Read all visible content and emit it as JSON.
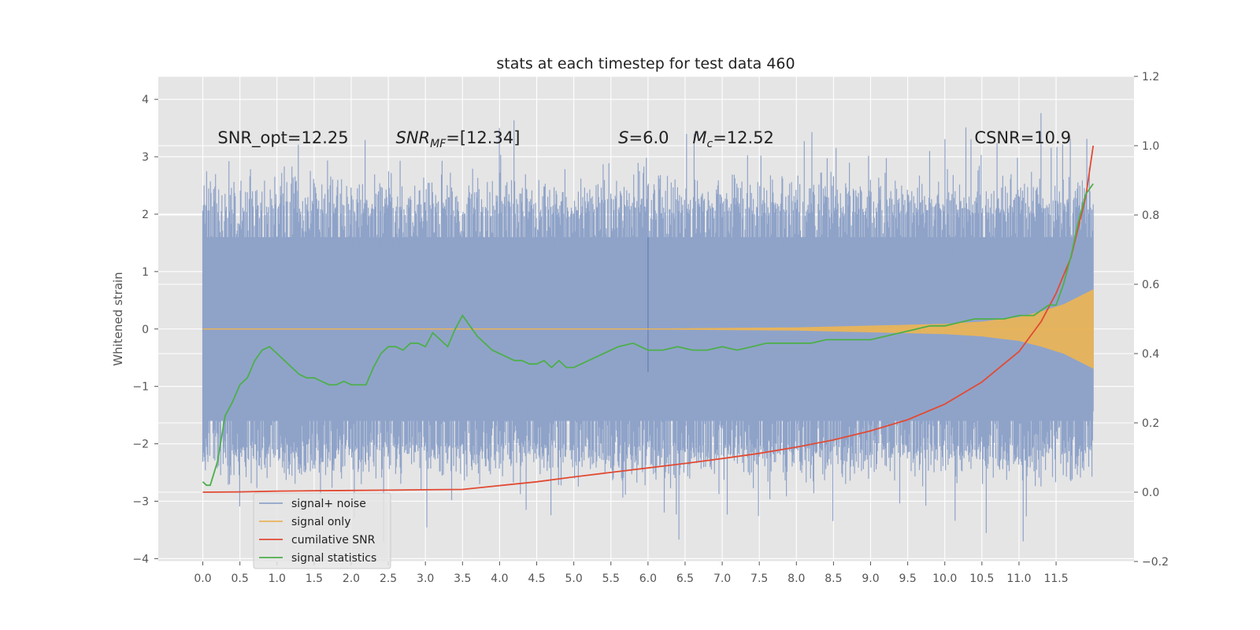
{
  "chart_data": {
    "type": "line",
    "title": "stats at each timestep for test data 460",
    "xlabel": "",
    "ylabel": "Whitened strain",
    "y2label": "",
    "xlim": [
      -0.6,
      12.55
    ],
    "ylim": [
      -4.05,
      4.4
    ],
    "y2lim": [
      -0.2,
      1.2
    ],
    "grid": true,
    "legend_position": "lower-left",
    "x_ticks": [
      "0.0",
      "0.5",
      "1.0",
      "1.5",
      "2.0",
      "2.5",
      "3.0",
      "3.5",
      "4.0",
      "4.5",
      "5.0",
      "5.5",
      "6.0",
      "6.5",
      "7.0",
      "7.5",
      "8.0",
      "8.5",
      "9.0",
      "9.5",
      "10.0",
      "10.5",
      "11.0",
      "11.5"
    ],
    "y_ticks": [
      "−4",
      "−3",
      "−2",
      "−1",
      "0",
      "1",
      "2",
      "3",
      "4"
    ],
    "y2_ticks": [
      "−0.2",
      "0.0",
      "0.2",
      "0.4",
      "0.6",
      "0.8",
      "1.0",
      "1.2"
    ],
    "annotations": [
      {
        "text": "SNR_opt=12.25",
        "x": 0.2
      },
      {
        "text": "SNR_MF=[12.34]",
        "x": 2.6
      },
      {
        "text": "S=6.0",
        "x": 5.6
      },
      {
        "text": "M_c=12.52",
        "x": 6.6
      },
      {
        "text": "CSNR=10.9",
        "x": 10.4
      }
    ],
    "annotation_y": 3.3,
    "series": [
      {
        "name": "signal+ noise",
        "axis": "left",
        "color": "#8fa3c9",
        "x_range": [
          0.0,
          12.0
        ],
        "noise_envelope": {
          "typical_min": -2.0,
          "typical_max": 2.0,
          "peak_min": -3.7,
          "peak_max": 4.1
        }
      },
      {
        "name": "signal only",
        "axis": "left",
        "color": "#e8b45a",
        "x": [
          0.0,
          6.0,
          8.0,
          9.0,
          10.0,
          10.5,
          11.0,
          11.3,
          11.6,
          11.8,
          12.0
        ],
        "envelope": [
          0.0,
          0.0,
          0.02,
          0.05,
          0.08,
          0.12,
          0.2,
          0.3,
          0.42,
          0.55,
          0.68
        ]
      },
      {
        "name": "cumilative SNR",
        "axis": "right",
        "color": "#e24a33",
        "x": [
          0.0,
          0.5,
          1.0,
          1.5,
          2.0,
          2.5,
          3.0,
          3.5,
          4.0,
          4.5,
          5.0,
          5.5,
          6.0,
          6.5,
          7.0,
          7.5,
          8.0,
          8.5,
          9.0,
          9.5,
          10.0,
          10.5,
          11.0,
          11.3,
          11.5,
          11.7,
          11.9,
          12.0
        ],
        "values": [
          0.0,
          0.001,
          0.003,
          0.004,
          0.005,
          0.006,
          0.007,
          0.008,
          0.019,
          0.03,
          0.044,
          0.057,
          0.07,
          0.083,
          0.097,
          0.112,
          0.13,
          0.151,
          0.177,
          0.209,
          0.254,
          0.318,
          0.406,
          0.493,
          0.574,
          0.677,
          0.853,
          1.0
        ]
      },
      {
        "name": "signal statistics",
        "axis": "right",
        "color": "#4daf4a",
        "x": [
          0.0,
          0.05,
          0.1,
          0.2,
          0.3,
          0.4,
          0.5,
          0.6,
          0.7,
          0.8,
          0.9,
          1.0,
          1.1,
          1.2,
          1.3,
          1.4,
          1.5,
          1.6,
          1.7,
          1.8,
          1.9,
          2.0,
          2.1,
          2.2,
          2.3,
          2.4,
          2.5,
          2.6,
          2.7,
          2.8,
          2.9,
          3.0,
          3.1,
          3.2,
          3.3,
          3.4,
          3.5,
          3.6,
          3.7,
          3.8,
          3.9,
          4.0,
          4.1,
          4.2,
          4.3,
          4.4,
          4.5,
          4.6,
          4.7,
          4.8,
          4.9,
          5.0,
          5.2,
          5.4,
          5.6,
          5.8,
          6.0,
          6.2,
          6.4,
          6.6,
          6.8,
          7.0,
          7.2,
          7.4,
          7.6,
          7.8,
          8.0,
          8.2,
          8.4,
          8.6,
          8.8,
          9.0,
          9.2,
          9.4,
          9.6,
          9.8,
          10.0,
          10.2,
          10.4,
          10.6,
          10.8,
          11.0,
          11.2,
          11.4,
          11.5,
          11.6,
          11.7,
          11.8,
          11.9,
          12.0
        ],
        "values": [
          0.03,
          0.02,
          0.02,
          0.09,
          0.22,
          0.26,
          0.31,
          0.33,
          0.38,
          0.41,
          0.42,
          0.4,
          0.38,
          0.36,
          0.34,
          0.33,
          0.33,
          0.32,
          0.31,
          0.31,
          0.32,
          0.31,
          0.31,
          0.31,
          0.36,
          0.4,
          0.42,
          0.42,
          0.41,
          0.43,
          0.43,
          0.42,
          0.46,
          0.44,
          0.42,
          0.47,
          0.51,
          0.48,
          0.45,
          0.43,
          0.41,
          0.4,
          0.39,
          0.38,
          0.38,
          0.37,
          0.37,
          0.38,
          0.36,
          0.38,
          0.36,
          0.36,
          0.38,
          0.4,
          0.42,
          0.43,
          0.41,
          0.41,
          0.42,
          0.41,
          0.41,
          0.42,
          0.41,
          0.42,
          0.43,
          0.43,
          0.43,
          0.43,
          0.44,
          0.44,
          0.44,
          0.44,
          0.45,
          0.46,
          0.47,
          0.48,
          0.48,
          0.49,
          0.5,
          0.5,
          0.5,
          0.51,
          0.51,
          0.54,
          0.54,
          0.6,
          0.68,
          0.78,
          0.86,
          0.89
        ]
      }
    ]
  }
}
